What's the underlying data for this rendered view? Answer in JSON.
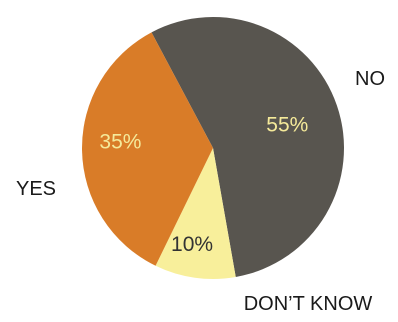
{
  "chart_data": {
    "type": "pie",
    "title": "",
    "slices": [
      {
        "category": "NO",
        "value": 55,
        "label": "55%",
        "color": "#58554f",
        "label_color": "#f5ea9a"
      },
      {
        "category": "DON’T KNOW",
        "value": 10,
        "label": "10%",
        "color": "#f8ef9b",
        "label_color": "#333333"
      },
      {
        "category": "YES",
        "value": 35,
        "label": "35%",
        "color": "#d97c28",
        "label_color": "#f5ea9a"
      }
    ],
    "start_angle_deg": -28,
    "legend": "labels-outside"
  }
}
